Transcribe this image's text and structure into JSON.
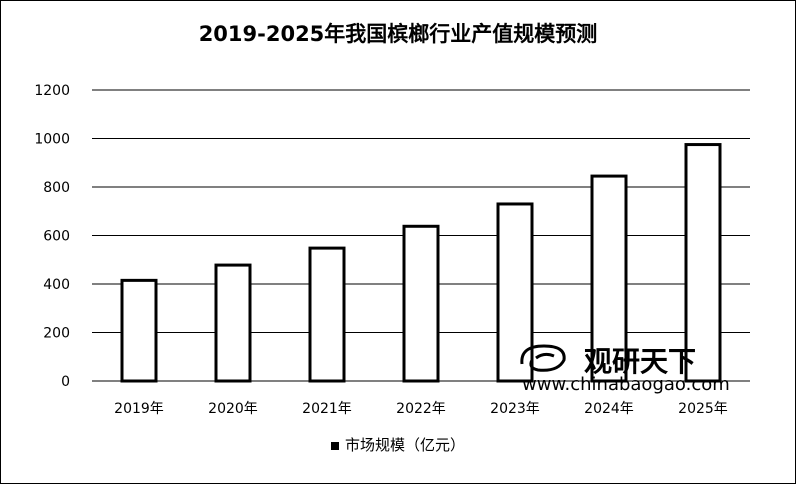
{
  "chart_data": {
    "type": "bar",
    "title": "2019-2025年我国槟榔行业产值规模预测",
    "categories": [
      "2019年",
      "2020年",
      "2021年",
      "2022年",
      "2023年",
      "2024年",
      "2025年"
    ],
    "series": [
      {
        "name": "市场规模（亿元）",
        "values": [
          415,
          478,
          548,
          638,
          730,
          845,
          975
        ]
      }
    ],
    "ylim": [
      0,
      1200
    ],
    "yticks": [
      0,
      200,
      400,
      600,
      800,
      1000,
      1200
    ],
    "grid": true,
    "legend_position": "bottom"
  },
  "watermark": {
    "brand": "观研天下",
    "url": "www.chinabaogao.com"
  },
  "colors": {
    "bar_fill": "#ffffff",
    "bar_stroke": "#000000",
    "grid": "#000000"
  }
}
